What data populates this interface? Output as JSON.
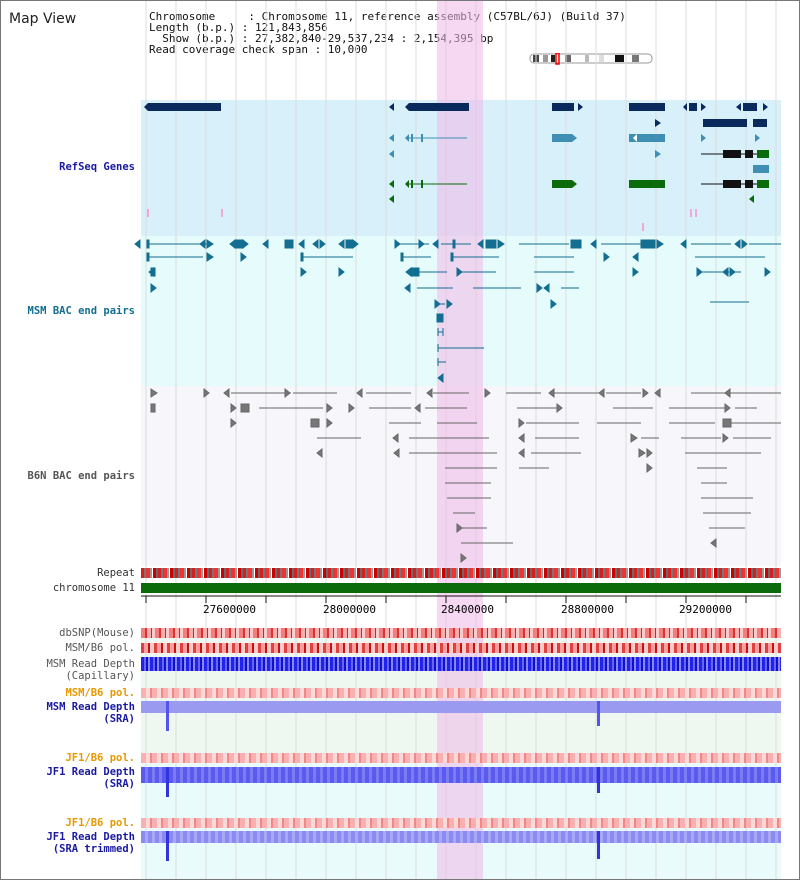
{
  "panel": {
    "title": "Map View"
  },
  "info": {
    "chromosome_line": "Chromosome     : Chromosome 11, reference assembly (C57BL/6J) (Build 37)",
    "length_line": "Length (b.p.) : 121,843,856",
    "show_line": "  Show (b.p.) : 27,382,840-29,537,234 : 2,154,395 bp",
    "coverage_line": "Read coverage check span : 10,000"
  },
  "tracks": {
    "refseq": "RefSeq Genes",
    "msm_bac": "MSM BAC end pairs",
    "b6n_bac": "B6N BAC end pairs",
    "repeat": "Repeat",
    "chromosome": "chromosome 11",
    "dbsnp": "dbSNP(Mouse)",
    "msm_b6_pol_1": "MSM/B6 pol.",
    "msm_read_depth_cap": "MSM Read Depth (Capillary)",
    "msm_b6_pol_2": "MSM/B6 pol.",
    "msm_read_depth_sra": "MSM Read Depth (SRA)",
    "jf1_b6_pol_1": "JF1/B6 pol.",
    "jf1_read_depth_sra": "JF1 Read Depth (SRA)",
    "jf1_b6_pol_2": "JF1/B6 pol.",
    "jf1_read_depth_trimmed": "JF1 Read Depth (SRA trimmed)"
  },
  "axis": {
    "ticks": [
      "27600000",
      "28000000",
      "28400000",
      "28800000",
      "29200000"
    ]
  },
  "colors": {
    "refseq_bg": "#d8f0fa",
    "msm_bg": "#e6fbfb",
    "b6n_bg": "#f6f6fb",
    "highlight": "#f8d6f2",
    "chrom_bar": "#0b6b0b",
    "gene_dark": "#0a2a5e",
    "gene_mid": "#3f8fb5",
    "gene_green": "#0b6b0b",
    "msm_pair": "#136e91",
    "b6n_pair": "#666666",
    "depth_blue": "#2222ee",
    "depth_light": "#8888ee",
    "label_orange": "#e69900",
    "label_blue": "#1a1aa0",
    "label_dark": "#333333"
  }
}
